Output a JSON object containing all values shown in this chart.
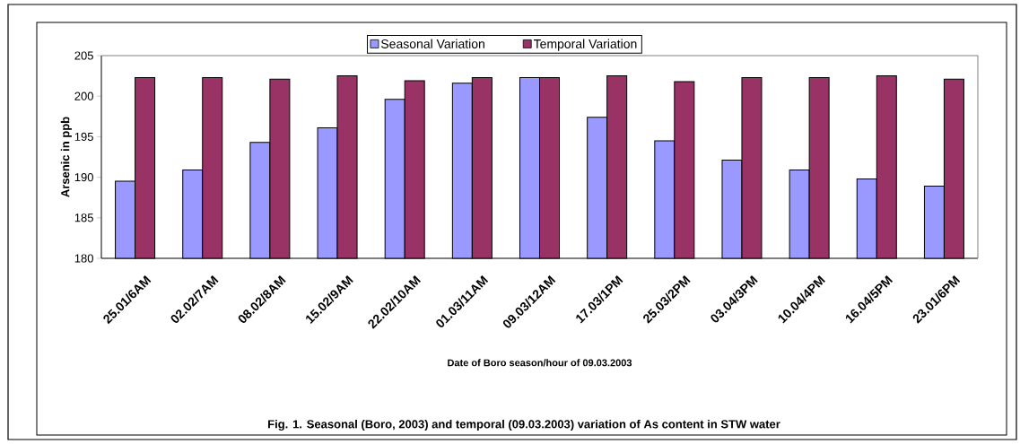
{
  "chart_data": {
    "type": "bar",
    "categories": [
      "25.01/6AM",
      "02.02/7AM",
      "08.02/8AM",
      "15.02/9AM",
      "22.02/10AM",
      "01.03/11AM",
      "09.03/12AM",
      "17.03/1PM",
      "25.03/2PM",
      "03.04/3PM",
      "10.04/4PM",
      "16.04/5PM",
      "23.01/6PM"
    ],
    "series": [
      {
        "name": "Seasonal Variation",
        "color": "#9999ff",
        "values": [
          189.5,
          190.9,
          194.3,
          196.1,
          199.6,
          201.6,
          202.3,
          197.4,
          194.5,
          192.1,
          190.9,
          189.8,
          188.9
        ]
      },
      {
        "name": "Temporal Variation",
        "color": "#993366",
        "values": [
          202.3,
          202.3,
          202.1,
          202.5,
          201.9,
          202.3,
          202.3,
          202.5,
          201.8,
          202.3,
          202.3,
          202.5,
          202.1
        ]
      }
    ],
    "xlabel": "Date of Boro season/hour of 09.03.2003",
    "ylabel": "Arsenic in ppb",
    "ylim": [
      180,
      205
    ],
    "yticks": [
      180,
      185,
      190,
      195,
      200,
      205
    ],
    "legend": "top",
    "grid": false,
    "annotations": [
      "Fig. 1. Seasonal (Boro, 2003) and temporal (09.03.2003) variation of As content in STW water"
    ]
  }
}
